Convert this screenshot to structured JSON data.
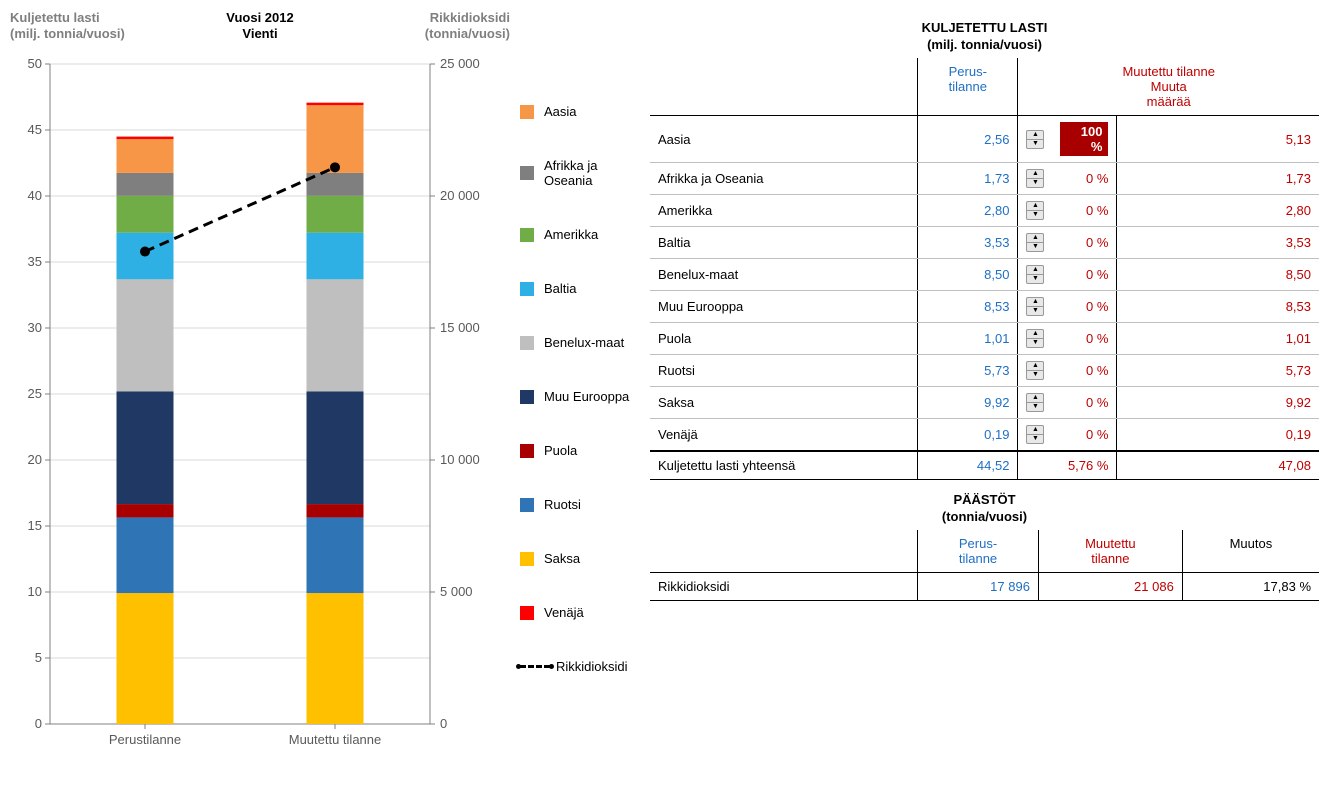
{
  "chart": {
    "type": "stacked-bar-dual-axis",
    "left_axis_title_l1": "Kuljetettu lasti",
    "left_axis_title_l2": "(milj. tonnia/vuosi)",
    "center_title_l1": "Vuosi 2012",
    "center_title_l2": "Vienti",
    "right_axis_title_l1": "Rikkidioksidi",
    "right_axis_title_l2": "(tonnia/vuosi)",
    "background_color": "#ffffff",
    "grid_color": "#d9d9d9",
    "axis_color": "#808080",
    "tick_label_color": "#595959",
    "left_ylim": [
      0,
      50
    ],
    "left_step": 5,
    "left_ticks": [
      0,
      5,
      10,
      15,
      20,
      25,
      30,
      35,
      40,
      45,
      50
    ],
    "right_ylim": [
      0,
      25000
    ],
    "right_step": 5000,
    "right_ticks": [
      0,
      5000,
      10000,
      15000,
      20000,
      25000
    ],
    "categories": [
      "Perustilanne",
      "Muutettu tilanne"
    ],
    "bar_width_ratio": 0.3,
    "series_order_bottom_to_top": [
      "Saksa",
      "Ruotsi",
      "Puola",
      "Muu Eurooppa",
      "Benelux-maat",
      "Baltia",
      "Amerikka",
      "Afrikka ja Oseania",
      "Aasia",
      "Venäjä"
    ],
    "series_colors": {
      "Aasia": "#f79646",
      "Afrikka ja Oseania": "#7f7f7f",
      "Amerikka": "#70ad47",
      "Baltia": "#2eb0e4",
      "Benelux-maat": "#bfbfbf",
      "Muu Eurooppa": "#1f3864",
      "Puola": "#a80000",
      "Ruotsi": "#2f75b5",
      "Saksa": "#ffc000",
      "Venäjä": "#ff0000"
    },
    "values_perus": {
      "Saksa": 9.92,
      "Ruotsi": 5.73,
      "Puola": 1.01,
      "Muu Eurooppa": 8.53,
      "Benelux-maat": 8.5,
      "Baltia": 3.53,
      "Amerikka": 2.8,
      "Afrikka ja Oseania": 1.73,
      "Aasia": 2.56,
      "Venäjä": 0.19
    },
    "values_muutettu": {
      "Saksa": 9.92,
      "Ruotsi": 5.73,
      "Puola": 1.01,
      "Muu Eurooppa": 8.53,
      "Benelux-maat": 8.5,
      "Baltia": 3.53,
      "Amerikka": 2.8,
      "Afrikka ja Oseania": 1.73,
      "Aasia": 5.13,
      "Venäjä": 0.19
    },
    "line_series": {
      "label": "Rikkidioksidi",
      "values": [
        17896,
        21086
      ],
      "color": "#000000",
      "dash": true,
      "marker": "circle",
      "marker_size": 5,
      "line_width": 3
    },
    "legend_order": [
      "Aasia",
      "Afrikka ja Oseania",
      "Amerikka",
      "Baltia",
      "Benelux-maat",
      "Muu Eurooppa",
      "Puola",
      "Ruotsi",
      "Saksa",
      "Venäjä"
    ]
  },
  "cargo_table": {
    "title": "KULJETETTU LASTI",
    "subtitle": "(milj. tonnia/vuosi)",
    "col_perus": "Perus-\ntilanne",
    "col_muutettu_group": "Muutettu tilanne",
    "col_muuta": "Muuta\nmäärää",
    "rows": [
      {
        "region": "Aasia",
        "perus": "2,56",
        "pct": "100 %",
        "muutettu": "5,13",
        "highlight": true
      },
      {
        "region": "Afrikka ja Oseania",
        "perus": "1,73",
        "pct": "0 %",
        "muutettu": "1,73",
        "highlight": false
      },
      {
        "region": "Amerikka",
        "perus": "2,80",
        "pct": "0 %",
        "muutettu": "2,80",
        "highlight": false
      },
      {
        "region": "Baltia",
        "perus": "3,53",
        "pct": "0 %",
        "muutettu": "3,53",
        "highlight": false
      },
      {
        "region": "Benelux-maat",
        "perus": "8,50",
        "pct": "0 %",
        "muutettu": "8,50",
        "highlight": false
      },
      {
        "region": "Muu Eurooppa",
        "perus": "8,53",
        "pct": "0 %",
        "muutettu": "8,53",
        "highlight": false
      },
      {
        "region": "Puola",
        "perus": "1,01",
        "pct": "0 %",
        "muutettu": "1,01",
        "highlight": false
      },
      {
        "region": "Ruotsi",
        "perus": "5,73",
        "pct": "0 %",
        "muutettu": "5,73",
        "highlight": false
      },
      {
        "region": "Saksa",
        "perus": "9,92",
        "pct": "0 %",
        "muutettu": "9,92",
        "highlight": false
      },
      {
        "region": "Venäjä",
        "perus": "0,19",
        "pct": "0 %",
        "muutettu": "0,19",
        "highlight": false
      }
    ],
    "total_label": "Kuljetettu lasti yhteensä",
    "total_perus": "44,52",
    "total_pct": "5,76 %",
    "total_muutettu": "47,08"
  },
  "emissions_table": {
    "title": "PÄÄSTÖT",
    "subtitle": "(tonnia/vuosi)",
    "col_perus": "Perus-\ntilanne",
    "col_muutettu": "Muutettu\ntilanne",
    "col_muutos": "Muutos",
    "row_label": "Rikkidioksidi",
    "row_perus": "17 896",
    "row_muutettu": "21 086",
    "row_muutos": "17,83 %"
  }
}
